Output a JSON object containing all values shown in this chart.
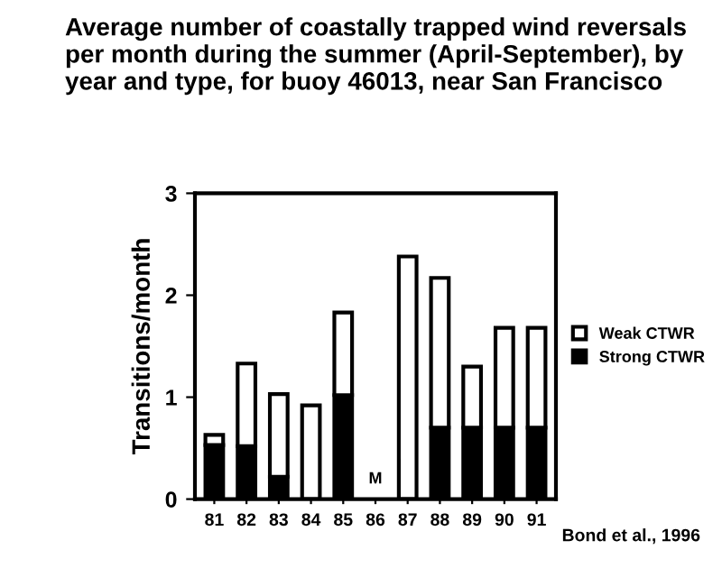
{
  "chart_data": {
    "type": "bar",
    "title": "Average number of coastally trapped wind reversals per month during the summer (April-September), by year and type, for buoy 46013, near San Francisco",
    "ylabel": "Transitions/month",
    "categories": [
      "81",
      "82",
      "83",
      "84",
      "85",
      "86",
      "87",
      "88",
      "89",
      "90",
      "91"
    ],
    "stacked": true,
    "series": [
      {
        "name": "Strong CTWR",
        "color": "#000000",
        "values": [
          0.53,
          0.52,
          0.22,
          0,
          1.02,
          null,
          0,
          0.7,
          0.7,
          0.7,
          0.7
        ]
      },
      {
        "name": "Weak CTWR",
        "color": "#ffffff",
        "values": [
          0.1,
          0.81,
          0.81,
          0.92,
          0.81,
          null,
          2.38,
          1.47,
          0.6,
          0.98,
          0.98
        ]
      }
    ],
    "ylim": [
      0,
      3
    ],
    "yticks": [
      0,
      1,
      2,
      3
    ],
    "grid": false,
    "legend": "right",
    "annotations": [
      "M",
      "Bond et al., 1996"
    ]
  }
}
